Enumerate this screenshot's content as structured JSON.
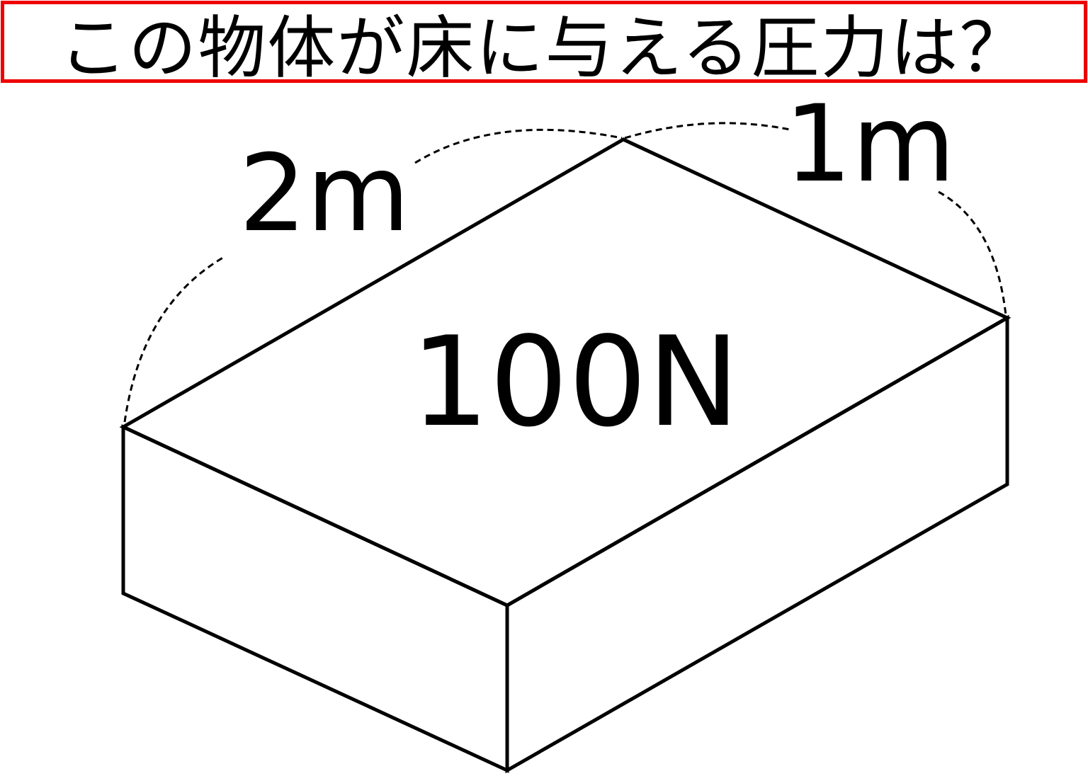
{
  "header": {
    "title": "この物体が床に与える圧力は？"
  },
  "labels": {
    "length": "2m",
    "width": "1m",
    "weight": "100N"
  }
}
